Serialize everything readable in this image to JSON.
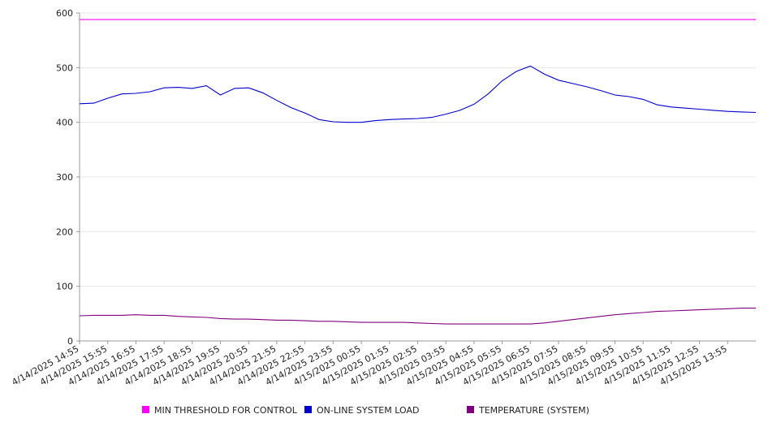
{
  "chart_data": {
    "type": "line",
    "title": "",
    "xlabel": "",
    "ylabel": "",
    "ylim": [
      0,
      600
    ],
    "yticks": [
      0,
      100,
      200,
      300,
      400,
      500,
      600
    ],
    "grid": "horizontal",
    "legend_position": "bottom",
    "x_tick_labels": [
      "4/14/2025 14:55",
      "4/14/2025 15:55",
      "4/14/2025 16:55",
      "4/14/2025 17:55",
      "4/14/2025 18:55",
      "4/14/2025 19:55",
      "4/14/2025 20:55",
      "4/14/2025 21:55",
      "4/14/2025 22:55",
      "4/14/2025 23:55",
      "4/15/2025 00:55",
      "4/15/2025 01:55",
      "4/15/2025 02:55",
      "4/15/2025 03:55",
      "4/15/2025 04:55",
      "4/15/2025 05:55",
      "4/15/2025 06:55",
      "4/15/2025 07:55",
      "4/15/2025 08:55",
      "4/15/2025 09:55",
      "4/15/2025 10:55",
      "4/15/2025 11:55",
      "4/15/2025 12:55",
      "4/15/2025 13:55"
    ],
    "x": [
      "4/14/2025 14:55",
      "4/14/2025 15:25",
      "4/14/2025 15:55",
      "4/14/2025 16:25",
      "4/14/2025 16:55",
      "4/14/2025 17:25",
      "4/14/2025 17:55",
      "4/14/2025 18:25",
      "4/14/2025 18:55",
      "4/14/2025 19:25",
      "4/14/2025 19:55",
      "4/14/2025 20:25",
      "4/14/2025 20:55",
      "4/14/2025 21:25",
      "4/14/2025 21:55",
      "4/14/2025 22:25",
      "4/14/2025 22:55",
      "4/14/2025 23:25",
      "4/14/2025 23:55",
      "4/15/2025 00:25",
      "4/15/2025 00:55",
      "4/15/2025 01:25",
      "4/15/2025 01:55",
      "4/15/2025 02:25",
      "4/15/2025 02:55",
      "4/15/2025 03:25",
      "4/15/2025 03:55",
      "4/15/2025 04:25",
      "4/15/2025 04:55",
      "4/15/2025 05:25",
      "4/15/2025 05:55",
      "4/15/2025 06:25",
      "4/15/2025 06:55",
      "4/15/2025 07:25",
      "4/15/2025 07:55",
      "4/15/2025 08:25",
      "4/15/2025 08:55",
      "4/15/2025 09:25",
      "4/15/2025 09:55",
      "4/15/2025 10:25",
      "4/15/2025 10:55",
      "4/15/2025 11:25",
      "4/15/2025 11:55",
      "4/15/2025 12:25",
      "4/15/2025 12:55",
      "4/15/2025 13:25",
      "4/15/2025 13:55",
      "4/15/2025 14:25",
      "4/15/2025 14:55"
    ],
    "series": [
      {
        "name": "MIN THRESHOLD FOR CONTROL",
        "color": "#ff00ff",
        "values": [
          588,
          588,
          588,
          588,
          588,
          588,
          588,
          588,
          588,
          588,
          588,
          588,
          588,
          588,
          588,
          588,
          588,
          588,
          588,
          588,
          588,
          588,
          588,
          588,
          588,
          588,
          588,
          588,
          588,
          588,
          588,
          588,
          588,
          588,
          588,
          588,
          588,
          588,
          588,
          588,
          588,
          588,
          588,
          588,
          588,
          588,
          588,
          588,
          588
        ]
      },
      {
        "name": "ON-LINE SYSTEM LOAD",
        "color": "#0000cc",
        "values": [
          434,
          435,
          444,
          452,
          453,
          456,
          463,
          464,
          462,
          467,
          450,
          462,
          463,
          454,
          440,
          427,
          417,
          405,
          401,
          400,
          400,
          403,
          405,
          406,
          407,
          409,
          415,
          422,
          433,
          452,
          476,
          493,
          503,
          488,
          477,
          471,
          465,
          458,
          450,
          447,
          442,
          432,
          428,
          426,
          424,
          422,
          420,
          419,
          418
        ]
      },
      {
        "name": "TEMPERATURE (SYSTEM)",
        "color": "#800080",
        "values": [
          46,
          47,
          47,
          47,
          48,
          47,
          47,
          45,
          44,
          43,
          41,
          40,
          40,
          39,
          38,
          38,
          37,
          36,
          36,
          35,
          34,
          34,
          34,
          34,
          33,
          32,
          31,
          31,
          31,
          31,
          31,
          31,
          31,
          33,
          36,
          39,
          42,
          45,
          48,
          50,
          52,
          54,
          55,
          56,
          57,
          58,
          59,
          60,
          60
        ]
      }
    ]
  }
}
